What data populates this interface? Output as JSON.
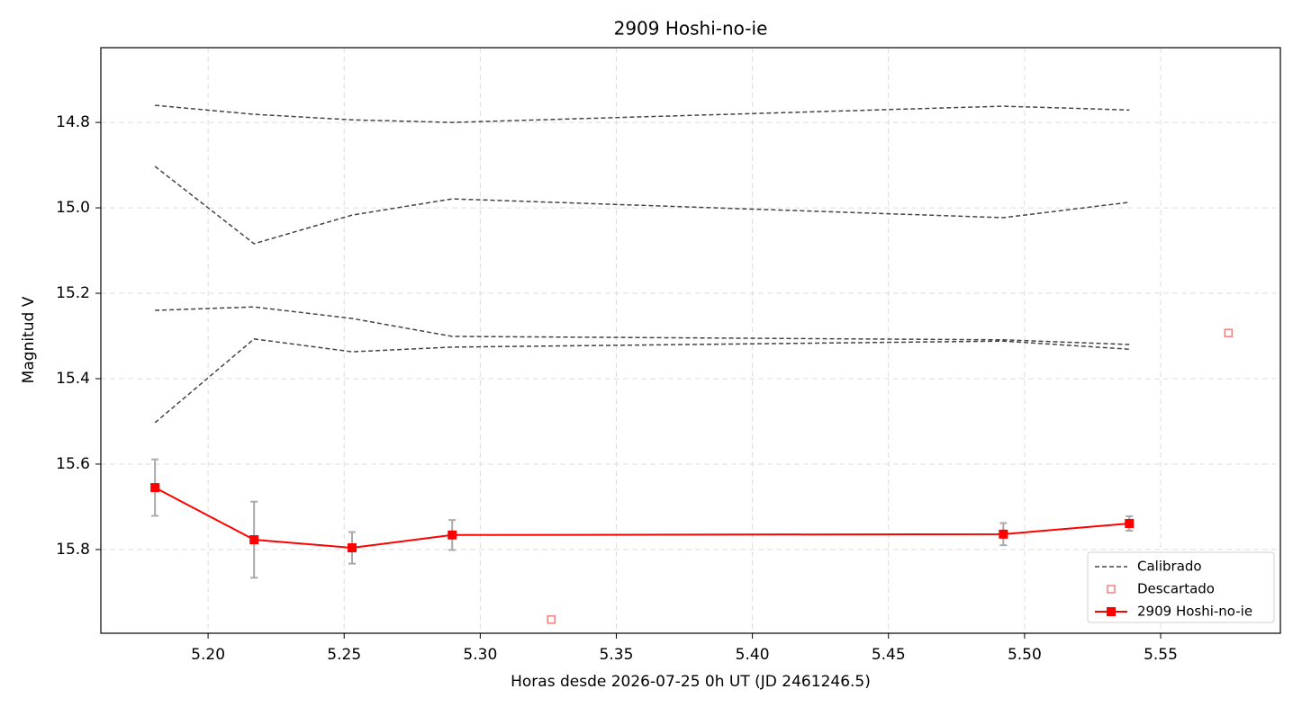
{
  "chart_data": {
    "type": "line",
    "title": "2909 Hoshi-no-ie",
    "xlabel": "Horas desde 2026-07-25 0h UT (JD 2461246.5)",
    "ylabel": "Magnitud V",
    "xlim": [
      5.1606,
      5.594
    ],
    "ylim": [
      14.625,
      15.996
    ],
    "invert_y": true,
    "grid": true,
    "legend": "lower right",
    "xticks": [
      {
        "value": 5.2,
        "label": "5.20"
      },
      5.25,
      {
        "value": 5.3,
        "label": "5.30"
      },
      5.35,
      {
        "value": 5.4,
        "label": "5.40"
      },
      5.45,
      {
        "value": 5.5,
        "label": "5.50"
      },
      5.55
    ],
    "yticks": [
      14.8,
      {
        "value": 15,
        "label": "15.0"
      },
      15.2,
      15.4,
      15.6,
      15.8
    ],
    "calibrated": {
      "name": "Calibrado",
      "color": "#444444",
      "x": [
        5.1805,
        5.2169,
        5.2529,
        5.2897,
        5.4922,
        5.5385
      ],
      "lines": [
        [
          14.76,
          14.781,
          14.794,
          14.8,
          14.762,
          14.771
        ],
        [
          14.903,
          15.084,
          15.017,
          14.979,
          15.023,
          14.987
        ],
        [
          15.24,
          15.232,
          15.259,
          15.301,
          15.309,
          15.32
        ],
        [
          15.503,
          15.307,
          15.337,
          15.326,
          15.312,
          15.331
        ]
      ]
    },
    "discarded": {
      "name": "Descartado",
      "color": "#f08080",
      "x": [
        5.3261,
        5.5749
      ],
      "y": [
        15.964,
        15.293
      ]
    },
    "series": [
      {
        "name": "2909 Hoshi-no-ie",
        "color": "#ff0000",
        "error_color": "#aaaaaa",
        "x": [
          5.1805,
          5.2169,
          5.2529,
          5.2897,
          5.4922,
          5.5385
        ],
        "values": [
          15.655,
          15.777,
          15.796,
          15.766,
          15.764,
          15.739
        ],
        "errors": [
          0.066,
          0.089,
          0.037,
          0.035,
          0.026,
          0.017
        ]
      }
    ]
  }
}
